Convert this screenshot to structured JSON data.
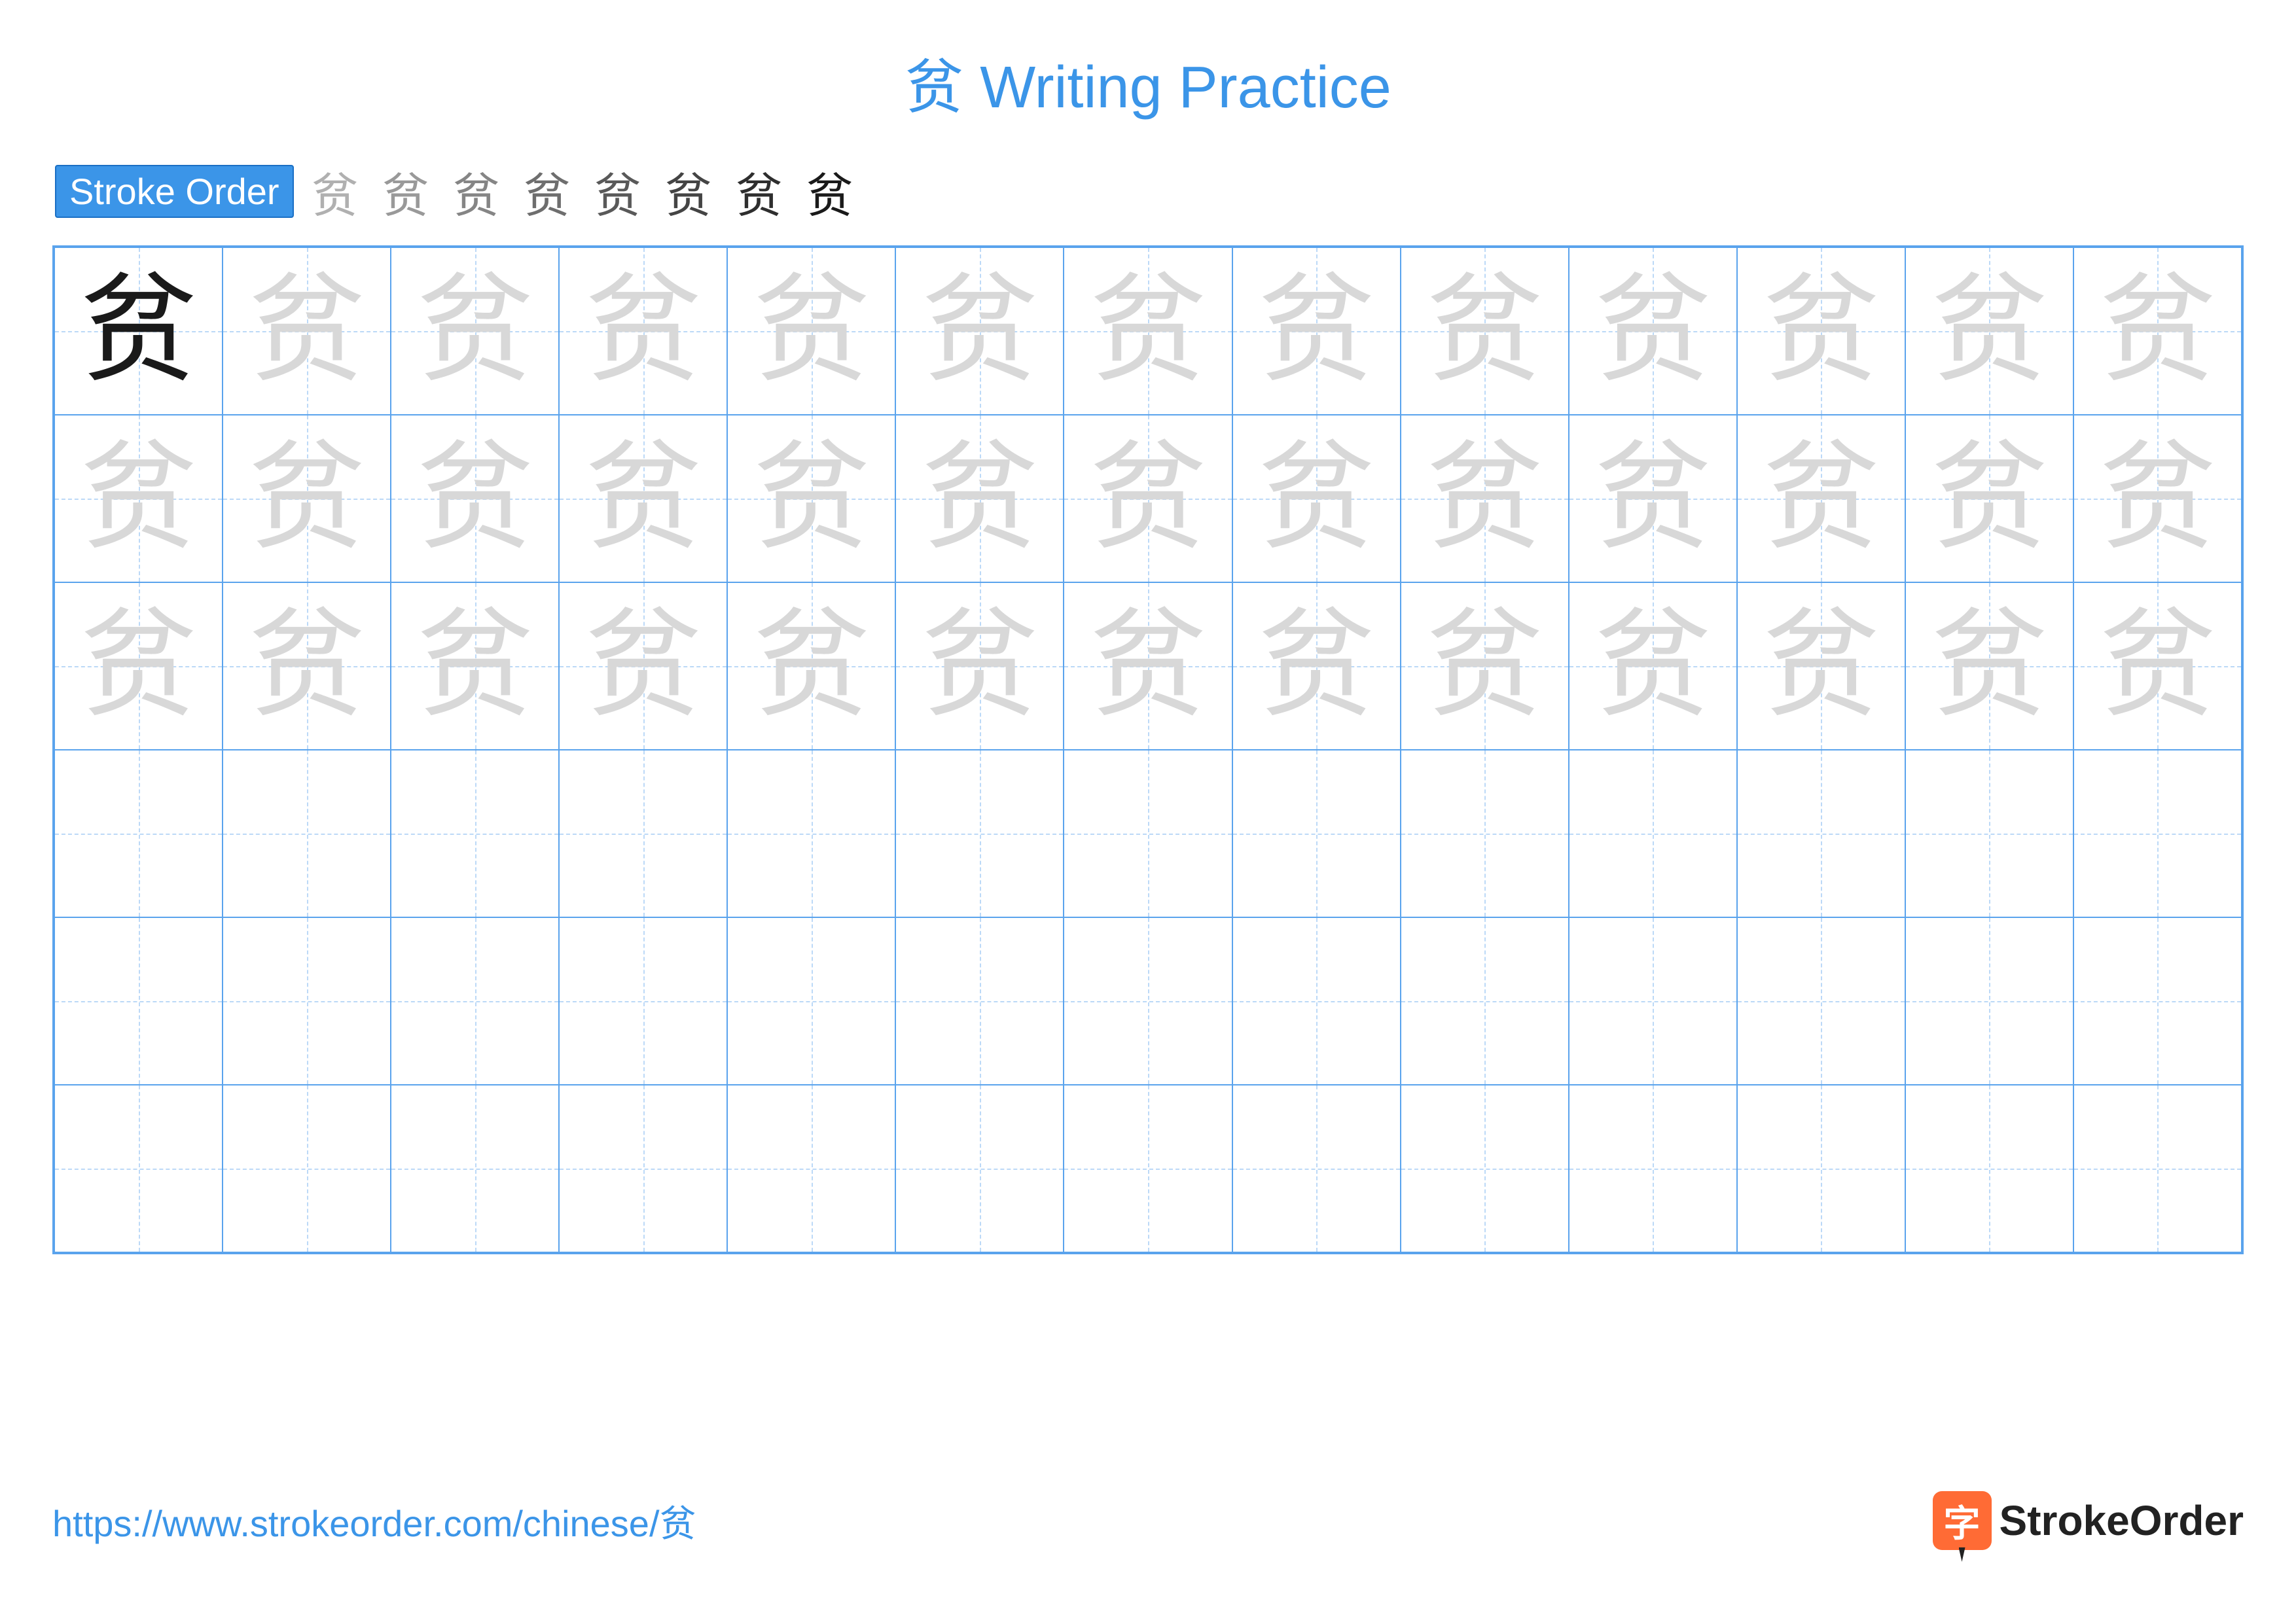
{
  "title_char": "贫",
  "title_text": "Writing Practice",
  "title_color": "#3b95e8",
  "stroke_label": "Stroke Order",
  "stroke_count": 8,
  "character": "贫",
  "grid": {
    "cols": 13,
    "rows": 6,
    "cell_size": 256,
    "border_color": "#5aa3ed",
    "guide_color": "#bcd9f7",
    "background": "#ffffff",
    "example_rows": 3,
    "example_color_model": "#1a1a1a",
    "example_color_trace": "#d8d8d8",
    "char_fontsize": 180
  },
  "footer": {
    "url": "https://www.strokeorder.com/chinese/贫",
    "url_color": "#3b95e8",
    "logo_text": "StrokeOrder",
    "logo_icon_char": "字",
    "logo_icon_bg": "#ff6b35"
  }
}
